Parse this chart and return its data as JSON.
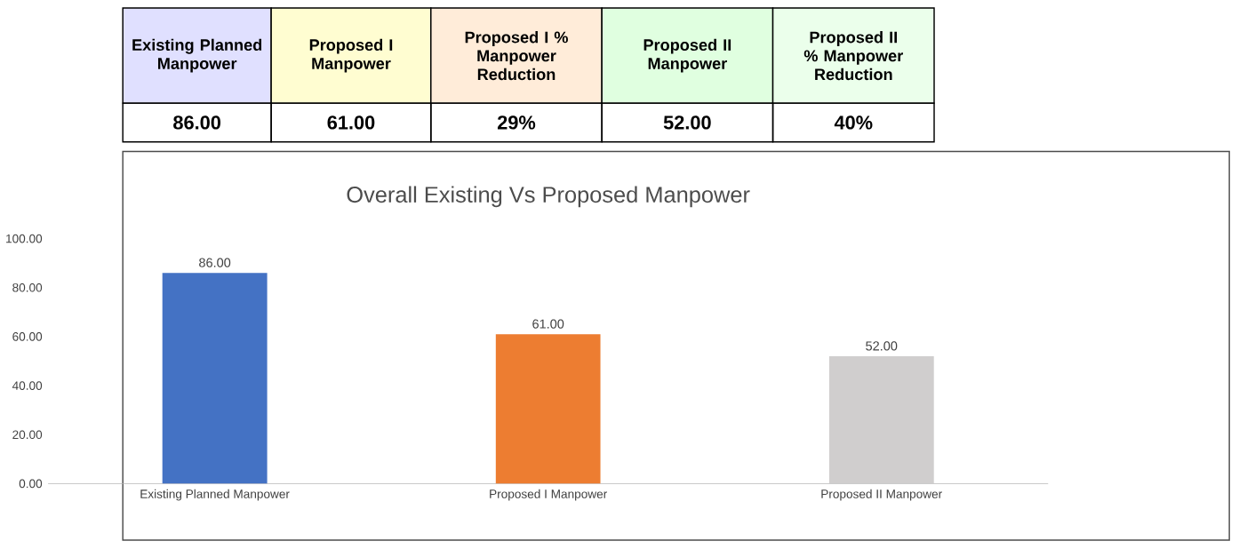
{
  "chart_data": {
    "type": "bar",
    "title": "Overall Existing Vs Proposed Manpower",
    "categories": [
      "Existing Planned Manpower",
      "Proposed I Manpower",
      "Proposed II Manpower"
    ],
    "values": [
      86,
      61,
      52
    ],
    "colors": [
      "#4472c4",
      "#ed7d31",
      "#d0cece"
    ],
    "value_labels": [
      "86.00",
      "61.00",
      "52.00"
    ],
    "ylim": [
      0,
      100
    ],
    "yticks": [
      {
        "value": 0,
        "label": "0.00"
      },
      {
        "value": 20,
        "label": "20.00"
      },
      {
        "value": 40,
        "label": "40.00"
      },
      {
        "value": 60,
        "label": "60.00"
      },
      {
        "value": 80,
        "label": "80.00"
      },
      {
        "value": 100,
        "label": "100.00"
      }
    ],
    "grid": false,
    "annotations": [
      "Existing Planned Manpower",
      "Proposed I Manpower",
      "Proposed I % Manpower Reduction",
      "Proposed II Manpower",
      "Proposed II % Manpower Reduction",
      "86.00",
      "61.00",
      "29%",
      "52.00",
      "40%"
    ]
  }
}
